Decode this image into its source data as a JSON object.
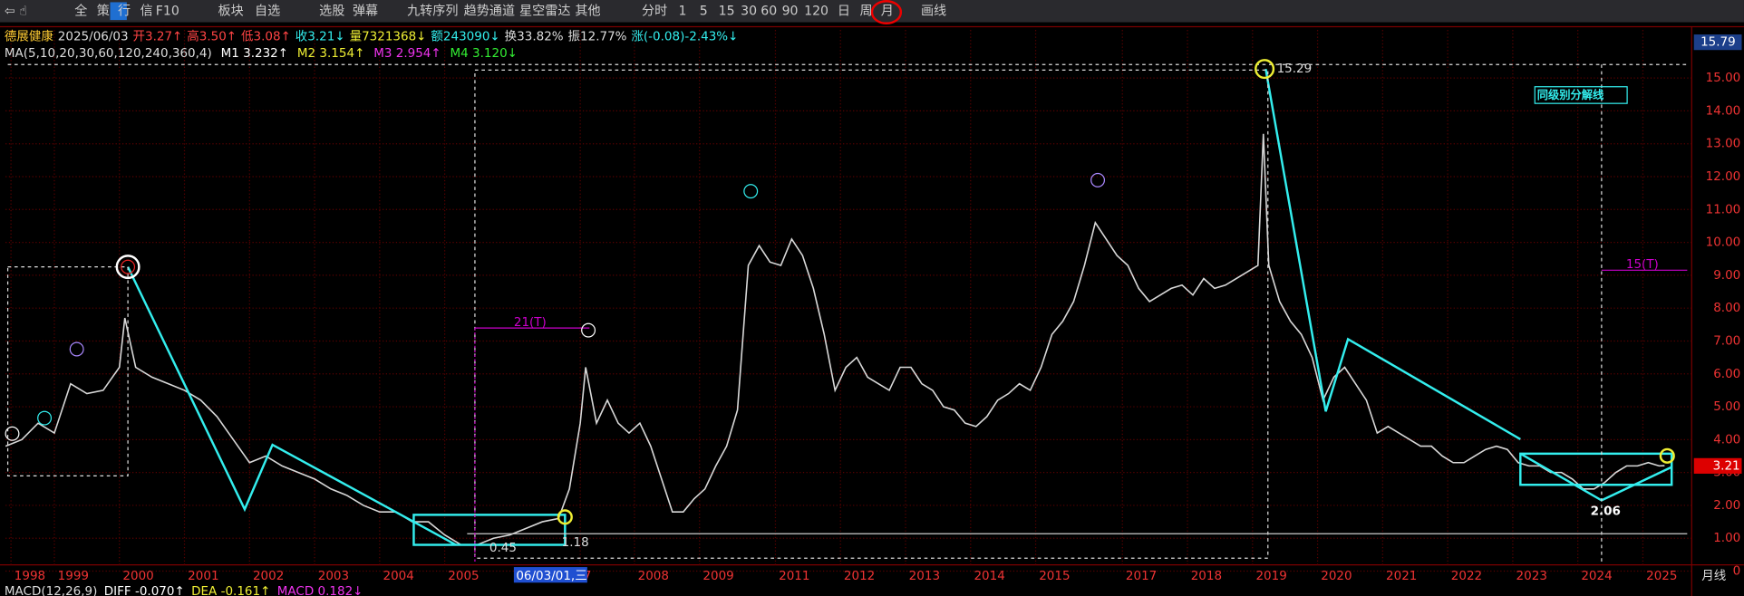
{
  "toolbar": {
    "items": [
      "全",
      "策",
      "行",
      "信",
      "F10",
      "板块",
      "自选",
      "选股",
      "弹幕",
      "九转序列",
      "趋势通道",
      "星空雷达",
      "其他",
      "分时",
      "1",
      "5",
      "15",
      "30",
      "60",
      "90",
      "120",
      "日",
      "周",
      "月",
      "画线"
    ]
  },
  "info": {
    "name": "德展健康",
    "date": "2025/06/03",
    "fields": [
      "开3.27↑",
      "高3.50↑",
      "低3.08↑",
      "收3.21↓",
      "量7321368↓",
      "额243090↓",
      "换33.82%",
      "振12.77%",
      "涨(-0.08)-2.43%↓"
    ]
  },
  "ma": {
    "label": "MA(5,10,20,30,60,120,240,360,4)",
    "fields": [
      "M1 3.232↑",
      "M2 3.154↑",
      "M3 2.954↑",
      "M4 3.120↓"
    ]
  },
  "chart_data": {
    "type": "line",
    "color": "#d8d8d8",
    "grid": true,
    "x": [
      0,
      3,
      6,
      9,
      12,
      15,
      18,
      21,
      22,
      24,
      27,
      30,
      33,
      36,
      39,
      42,
      45,
      48,
      51,
      54,
      57,
      60,
      63,
      66,
      69,
      72,
      75,
      78,
      81,
      84,
      87,
      90,
      93,
      96,
      99,
      102,
      104,
      106,
      107,
      109,
      111,
      113,
      115,
      117,
      119,
      121,
      123,
      125,
      127,
      129,
      131,
      133,
      135,
      137,
      139,
      141,
      143,
      145,
      147,
      149,
      151,
      153,
      155,
      157,
      159,
      161,
      163,
      165,
      167,
      169,
      171,
      173,
      175,
      177,
      179,
      181,
      183,
      185,
      187,
      189,
      191,
      193,
      195,
      197,
      199,
      201,
      203,
      205,
      207,
      209,
      211,
      213,
      215,
      217,
      219,
      221,
      223,
      225,
      227,
      229,
      231,
      232,
      233,
      235,
      237,
      239,
      241,
      243,
      245,
      247,
      249,
      251,
      253,
      255,
      257,
      259,
      261,
      263,
      265,
      267,
      269,
      271,
      273,
      275,
      277,
      279,
      281,
      283,
      285,
      287,
      289,
      291,
      293,
      295,
      297,
      299,
      301,
      303,
      305,
      306
    ],
    "values": [
      3.8,
      4.0,
      4.5,
      4.2,
      5.7,
      5.4,
      5.5,
      6.2,
      7.7,
      6.2,
      5.9,
      5.7,
      5.5,
      5.2,
      4.7,
      4.0,
      3.3,
      3.5,
      3.2,
      3.0,
      2.8,
      2.5,
      2.3,
      2.0,
      1.8,
      1.8,
      1.5,
      1.5,
      1.1,
      0.8,
      0.8,
      1.0,
      1.1,
      1.3,
      1.5,
      1.6,
      2.5,
      4.5,
      6.2,
      4.5,
      5.2,
      4.5,
      4.2,
      4.5,
      3.8,
      2.8,
      1.8,
      1.8,
      2.2,
      2.5,
      3.2,
      3.8,
      4.9,
      9.3,
      9.9,
      9.4,
      9.3,
      10.1,
      9.6,
      8.6,
      7.2,
      5.5,
      6.2,
      6.5,
      5.9,
      5.7,
      5.5,
      6.2,
      6.2,
      5.7,
      5.5,
      5.0,
      4.9,
      4.5,
      4.4,
      4.7,
      5.2,
      5.4,
      5.7,
      5.5,
      6.2,
      7.2,
      7.6,
      8.2,
      9.3,
      10.6,
      10.1,
      9.6,
      9.3,
      8.6,
      8.2,
      8.4,
      8.6,
      8.7,
      8.4,
      8.9,
      8.6,
      8.7,
      8.9,
      9.1,
      9.3,
      13.3,
      9.3,
      8.2,
      7.6,
      7.2,
      6.5,
      5.2,
      5.9,
      6.2,
      5.7,
      5.2,
      4.2,
      4.4,
      4.2,
      4.0,
      3.8,
      3.8,
      3.5,
      3.3,
      3.3,
      3.5,
      3.7,
      3.8,
      3.7,
      3.3,
      3.2,
      3.2,
      3.0,
      3.0,
      2.8,
      2.5,
      2.5,
      2.7,
      3.0,
      3.2,
      3.2,
      3.3,
      3.2,
      3.21
    ],
    "xlim": [
      0,
      311
    ],
    "ylim": [
      0.19,
      16.46
    ],
    "xticks": [
      {
        "value": 1,
        "label": "1998"
      },
      {
        "value": 9,
        "label": "1999"
      },
      {
        "value": 21,
        "label": "2000"
      },
      {
        "value": 33,
        "label": "2001"
      },
      {
        "value": 45,
        "label": "2002"
      },
      {
        "value": 57,
        "label": "2003"
      },
      {
        "value": 69,
        "label": "2004"
      },
      {
        "value": 81,
        "label": "2005"
      },
      {
        "value": 106,
        "label": "7"
      },
      {
        "value": 116,
        "label": "2008"
      },
      {
        "value": 128,
        "label": "2009"
      },
      {
        "value": 142,
        "label": "2011"
      },
      {
        "value": 154,
        "label": "2012"
      },
      {
        "value": 166,
        "label": "2013"
      },
      {
        "value": 178,
        "label": "2014"
      },
      {
        "value": 190,
        "label": "2015"
      },
      {
        "value": 206,
        "label": "2017"
      },
      {
        "value": 218,
        "label": "2018"
      },
      {
        "value": 230,
        "label": "2019"
      },
      {
        "value": 242,
        "label": "2020"
      },
      {
        "value": 254,
        "label": "2021"
      },
      {
        "value": 266,
        "label": "2022"
      },
      {
        "value": 278,
        "label": "2023"
      },
      {
        "value": 290,
        "label": "2024"
      },
      {
        "value": 302,
        "label": "2025"
      }
    ],
    "yticks": [
      0,
      {
        "value": 1,
        "label": "1.00"
      },
      {
        "value": 2,
        "label": "2.00"
      },
      {
        "value": 3,
        "label": "3.00"
      },
      {
        "value": 4,
        "label": "4.00"
      },
      {
        "value": 5,
        "label": "5.00"
      },
      {
        "value": 6,
        "label": "6.00"
      },
      {
        "value": 7,
        "label": "7.00"
      },
      {
        "value": 8,
        "label": "8.00"
      },
      {
        "value": 9,
        "label": "9.00"
      },
      {
        "value": 10,
        "label": "10.00"
      },
      {
        "value": 11,
        "label": "11.00"
      },
      {
        "value": 12,
        "label": "12.00"
      },
      {
        "value": 13,
        "label": "13.00"
      },
      {
        "value": 14,
        "label": "14.00"
      },
      {
        "value": 15,
        "label": "15.00"
      }
    ],
    "annotations": [
      "15.29",
      "2.06",
      "0.45",
      "1.18",
      "21(T)",
      "15(T)",
      "同级别分解线"
    ],
    "cursor_label": "06/03/01,三",
    "top_price": "15.79",
    "last_price": "3.21",
    "period": "月线"
  },
  "macd": {
    "label": "MACD(12,26,9)",
    "fields": [
      "DIFF -0.070↑",
      "DEA -0.161↑",
      "MACD 0.182↓"
    ]
  }
}
